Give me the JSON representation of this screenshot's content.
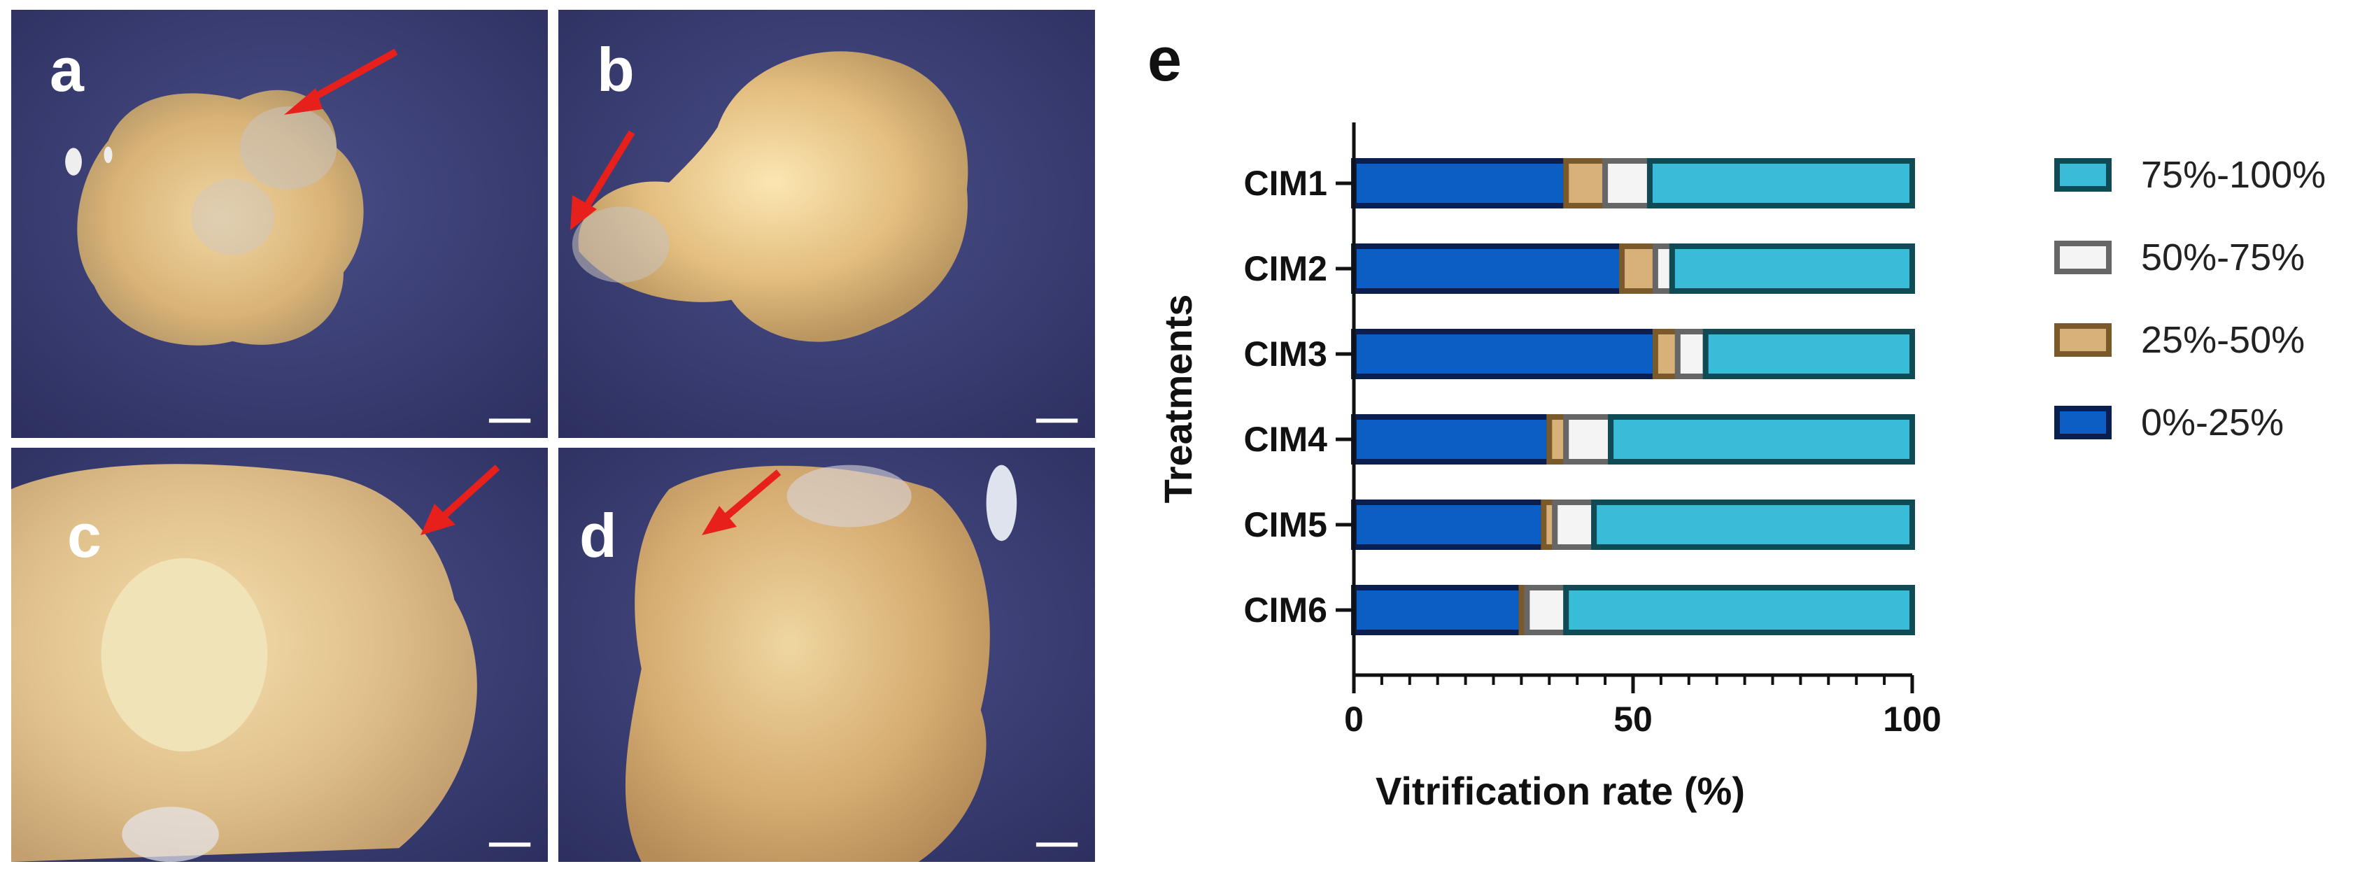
{
  "panels": [
    {
      "id": "a",
      "label": "a"
    },
    {
      "id": "b",
      "label": "b"
    },
    {
      "id": "c",
      "label": "c"
    },
    {
      "id": "d",
      "label": "d"
    }
  ],
  "chart_panel_label": "e",
  "colors": {
    "photo_bg": "#3a3d72",
    "callus": "#e8c58a",
    "arrow": "#e8201c",
    "seg_0_25_fill": "#0b5ec4",
    "seg_0_25_border": "#0a1f4f",
    "seg_25_50_fill": "#d7b07a",
    "seg_25_50_border": "#7a5a2a",
    "seg_50_75_fill": "#f4f4f4",
    "seg_50_75_border": "#666666",
    "seg_75_100_fill": "#38bcd8",
    "seg_75_100_border": "#0f4a55"
  },
  "chart_data": {
    "type": "bar",
    "orientation": "horizontal",
    "stacked": true,
    "categories": [
      "CIM1",
      "CIM2",
      "CIM3",
      "CIM4",
      "CIM5",
      "CIM6"
    ],
    "series": [
      {
        "name": "0%-25%",
        "values": [
          38,
          48,
          54,
          35,
          34,
          30
        ]
      },
      {
        "name": "25%-50%",
        "values": [
          7,
          6,
          4,
          3,
          2,
          1
        ]
      },
      {
        "name": "50%-75%",
        "values": [
          8,
          3,
          5,
          8,
          7,
          7
        ]
      },
      {
        "name": "75%-100%",
        "values": [
          47,
          43,
          37,
          54,
          57,
          62
        ]
      }
    ],
    "xlabel": "Vitrification rate (%)",
    "ylabel": "Treatments",
    "xlim": [
      0,
      100
    ],
    "xticks": [
      0,
      50,
      100
    ],
    "legend_order": [
      "75%-100%",
      "50%-75%",
      "25%-50%",
      "0%-25%"
    ],
    "legend_position": "right",
    "grid": false
  }
}
